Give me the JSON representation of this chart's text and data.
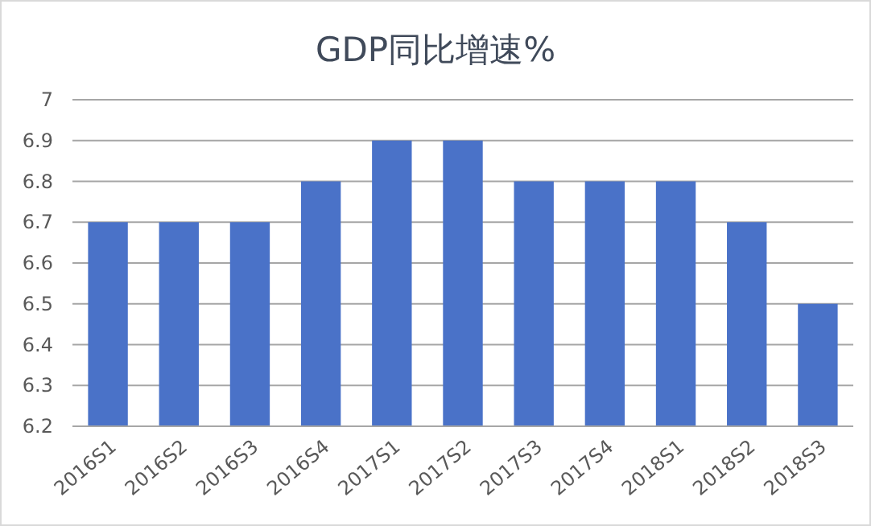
{
  "chart_data": {
    "type": "bar",
    "title": "GDP同比增速%",
    "categories": [
      "2016S1",
      "2016S2",
      "2016S3",
      "2016S4",
      "2017S1",
      "2017S2",
      "2017S3",
      "2017S4",
      "2018S1",
      "2018S2",
      "2018S3"
    ],
    "values": [
      6.7,
      6.7,
      6.7,
      6.8,
      6.9,
      6.9,
      6.8,
      6.8,
      6.8,
      6.7,
      6.5
    ],
    "color": "#4a72c8",
    "ylim": [
      6.2,
      7
    ],
    "yticks": [
      6.2,
      6.3,
      6.4,
      6.5,
      6.6,
      6.7,
      6.8,
      6.9,
      7
    ],
    "grid": "y"
  }
}
